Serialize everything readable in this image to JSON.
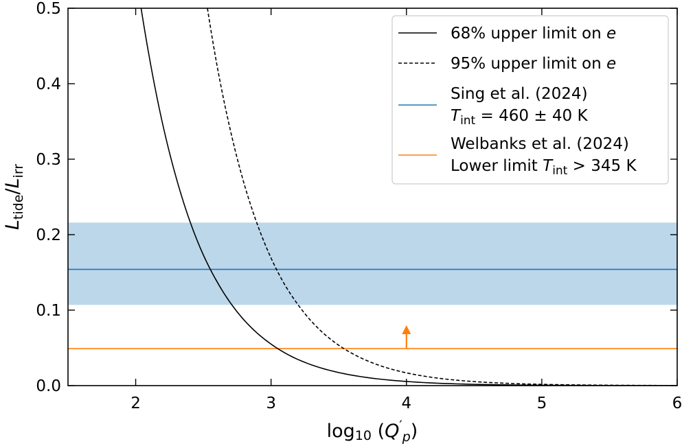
{
  "chart_data": {
    "type": "line",
    "xlabel": "log10(Q'p)",
    "ylabel": "Ltide/Lirr",
    "xlim": [
      1.5,
      6.0
    ],
    "ylim": [
      0.0,
      0.5
    ],
    "xticks": [
      2,
      3,
      4,
      5,
      6
    ],
    "yticks": [
      0.0,
      0.1,
      0.2,
      0.3,
      0.4,
      0.5
    ],
    "xtick_labels": [
      "2",
      "3",
      "4",
      "5",
      "6"
    ],
    "ytick_labels": [
      "0.0",
      "0.1",
      "0.2",
      "0.3",
      "0.4",
      "0.5"
    ],
    "grid": false,
    "legend_position": "top-right",
    "series": [
      {
        "name": "68% upper limit on e",
        "style": "solid",
        "color": "#000000",
        "x": [
          2.04,
          2.1,
          2.2,
          2.3,
          2.4,
          2.5,
          2.6,
          2.8,
          3.0,
          3.2,
          3.5,
          4.0,
          4.5,
          5.0,
          5.5,
          6.0
        ],
        "y": [
          0.5,
          0.436,
          0.346,
          0.275,
          0.218,
          0.173,
          0.138,
          0.087,
          0.055,
          0.0345,
          0.0173,
          0.0055,
          0.0017,
          0.00055,
          0.00017,
          5.5e-05
        ]
      },
      {
        "name": "95% upper limit on e",
        "style": "dashed",
        "color": "#000000",
        "x": [
          2.53,
          2.6,
          2.7,
          2.8,
          2.9,
          3.0,
          3.1,
          3.2,
          3.4,
          3.6,
          3.8,
          4.0,
          4.5,
          5.0,
          5.5,
          6.0
        ],
        "y": [
          0.5,
          0.425,
          0.338,
          0.268,
          0.213,
          0.169,
          0.134,
          0.107,
          0.0673,
          0.0425,
          0.0268,
          0.0169,
          0.00535,
          0.00169,
          0.000535,
          0.000169
        ]
      }
    ],
    "bands": [
      {
        "name": "Sing et al. (2024)",
        "name_line2": "T_int = 460 ± 40 K",
        "line_label": "Tint = 460 ± 40 K",
        "center": 0.154,
        "low": 0.107,
        "high": 0.216,
        "line_color": "#1f77b4",
        "fill_color": "#bcd7ea"
      }
    ],
    "hlines": [
      {
        "name": "Welbanks et al. (2024)",
        "name_line2": "Lower limit T_int > 345 K",
        "line_label": "Lower limit Tint > 345 K",
        "y": 0.049,
        "color": "#ff7f0e",
        "arrow_x": 4.0,
        "arrow_to_y": 0.08
      }
    ]
  }
}
